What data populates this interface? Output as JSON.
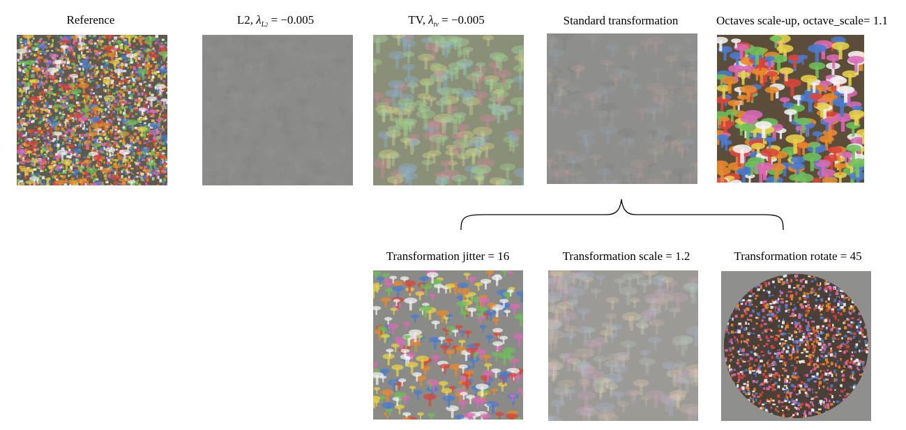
{
  "figure": {
    "panels": [
      {
        "id": "reference",
        "caption": "Reference",
        "texture": "dense multicolor noise with tiny mushroom-like shapes"
      },
      {
        "id": "l2",
        "caption_prefix": "L2, ",
        "lambda_symbol": "λ",
        "lambda_sub": "L",
        "lambda_subsub": "2",
        "caption_value": "=  −0.005"
      },
      {
        "id": "tv",
        "caption_prefix": "TV, ",
        "lambda_symbol": "λ",
        "lambda_sub": "tv",
        "caption_value": "=  −0.005"
      },
      {
        "id": "standard",
        "caption": "Standard transformation"
      },
      {
        "id": "octaves",
        "caption": "Octaves scale-up, octave_scale= 1.1"
      },
      {
        "id": "jitter",
        "caption": "Transformation jitter = 16"
      },
      {
        "id": "scale",
        "caption": "Transformation scale  = 1.2"
      },
      {
        "id": "rotate",
        "caption": "Transformation rotate  = 45"
      }
    ],
    "colors": {
      "gray_bg": "#8a8a8a",
      "accent_red": "#d9453a",
      "accent_green": "#6fbf5a",
      "accent_blue": "#4a7bd0",
      "accent_orange": "#e88a2e",
      "accent_pink": "#d86bb5",
      "accent_yellow": "#e6d24a",
      "accent_white": "#f2f2f2"
    }
  }
}
